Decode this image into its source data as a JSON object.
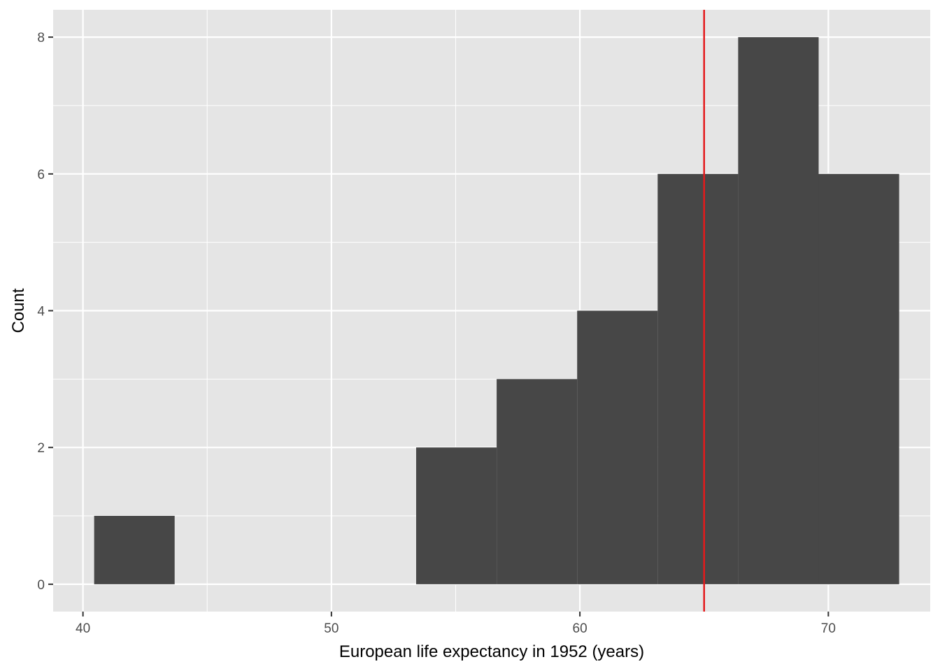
{
  "chart_data": {
    "type": "histogram",
    "title": "",
    "xlabel": "European life expectancy in 1952 (years)",
    "ylabel": "Count",
    "xlim": [
      38.8,
      74.1
    ],
    "ylim": [
      -0.4,
      8.4
    ],
    "x_ticks": [
      40,
      50,
      60,
      70
    ],
    "x_tick_labels": [
      "40",
      "50",
      "60",
      "70"
    ],
    "y_ticks": [
      0,
      2,
      4,
      6,
      8
    ],
    "y_tick_labels": [
      "0",
      "2",
      "4",
      "6",
      "8"
    ],
    "grid": true,
    "bins": [
      {
        "x0": 40.45,
        "x1": 43.69,
        "count": 1
      },
      {
        "x0": 43.69,
        "x1": 46.93,
        "count": 0
      },
      {
        "x0": 46.93,
        "x1": 50.17,
        "count": 0
      },
      {
        "x0": 50.17,
        "x1": 53.41,
        "count": 0
      },
      {
        "x0": 53.41,
        "x1": 56.65,
        "count": 2
      },
      {
        "x0": 56.65,
        "x1": 59.89,
        "count": 3
      },
      {
        "x0": 59.89,
        "x1": 63.13,
        "count": 4
      },
      {
        "x0": 63.13,
        "x1": 66.37,
        "count": 6
      },
      {
        "x0": 66.37,
        "x1": 69.61,
        "count": 8
      },
      {
        "x0": 69.61,
        "x1": 72.85,
        "count": 6
      }
    ],
    "reference_line": {
      "x": 65.0,
      "color": "#e41a1c"
    },
    "bar_color": "#474747",
    "panel_color": "#e5e5e5",
    "grid_color": "#ffffff"
  }
}
